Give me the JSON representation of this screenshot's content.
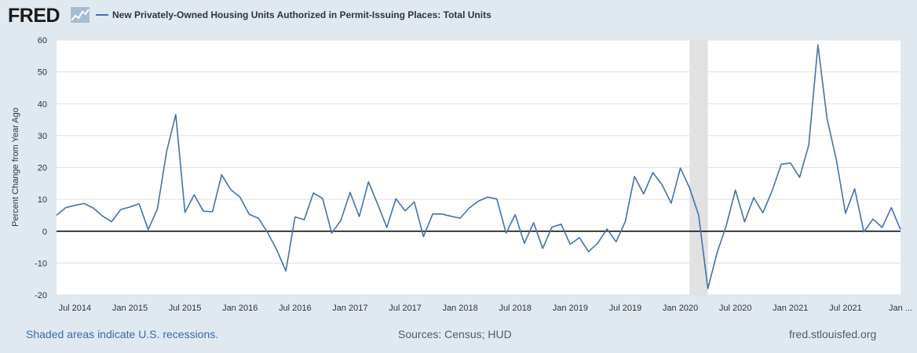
{
  "header": {
    "logo_text": "FRED",
    "logo_icon": "chart-graph-icon",
    "legend_label": "New Privately-Owned Housing Units Authorized in Permit-Issuing Places: Total Units"
  },
  "footer": {
    "recession_note": "Shaded areas indicate U.S. recessions.",
    "sources": "Sources: Census; HUD",
    "site": "fred.stlouisfed.org"
  },
  "colors": {
    "line": "#4572a7",
    "zero_line": "#000000",
    "recession": "#e1e1e1",
    "grid": "#e0e0e0",
    "plot_bg": "#ffffff",
    "page_bg": "#e1e9f0"
  },
  "chart_data": {
    "type": "line",
    "title": "New Privately-Owned Housing Units Authorized in Permit-Issuing Places: Total Units",
    "xlabel": "",
    "ylabel": "Percent Change from Year Ago",
    "ylim": [
      -20,
      60
    ],
    "yticks": [
      60,
      50,
      40,
      30,
      20,
      10,
      0,
      -10,
      -20
    ],
    "x_start": "2014-05",
    "x_end": "2022-01",
    "xticks": [
      {
        "date": "2014-07",
        "label": "Jul 2014"
      },
      {
        "date": "2015-01",
        "label": "Jan 2015"
      },
      {
        "date": "2015-07",
        "label": "Jul 2015"
      },
      {
        "date": "2016-01",
        "label": "Jan 2016"
      },
      {
        "date": "2016-07",
        "label": "Jul 2016"
      },
      {
        "date": "2017-01",
        "label": "Jan 2017"
      },
      {
        "date": "2017-07",
        "label": "Jul 2017"
      },
      {
        "date": "2018-01",
        "label": "Jan 2018"
      },
      {
        "date": "2018-07",
        "label": "Jul 2018"
      },
      {
        "date": "2019-01",
        "label": "Jan 2019"
      },
      {
        "date": "2019-07",
        "label": "Jul 2019"
      },
      {
        "date": "2020-01",
        "label": "Jan 2020"
      },
      {
        "date": "2020-07",
        "label": "Jul 2020"
      },
      {
        "date": "2021-01",
        "label": "Jan 2021"
      },
      {
        "date": "2021-07",
        "label": "Jul 2021"
      },
      {
        "date": "2022-01",
        "label": "Jan ..."
      }
    ],
    "recession": {
      "start": "2020-02",
      "end": "2020-04"
    },
    "grid": true,
    "series": [
      {
        "name": "New Privately-Owned Housing Units Authorized in Permit-Issuing Places: Total Units",
        "dates": [
          "2014-05",
          "2014-06",
          "2014-07",
          "2014-08",
          "2014-09",
          "2014-10",
          "2014-11",
          "2014-12",
          "2015-01",
          "2015-02",
          "2015-03",
          "2015-04",
          "2015-05",
          "2015-06",
          "2015-07",
          "2015-08",
          "2015-09",
          "2015-10",
          "2015-11",
          "2015-12",
          "2016-01",
          "2016-02",
          "2016-03",
          "2016-04",
          "2016-05",
          "2016-06",
          "2016-07",
          "2016-08",
          "2016-09",
          "2016-10",
          "2016-11",
          "2016-12",
          "2017-01",
          "2017-02",
          "2017-03",
          "2017-04",
          "2017-05",
          "2017-06",
          "2017-07",
          "2017-08",
          "2017-09",
          "2017-10",
          "2017-11",
          "2017-12",
          "2018-01",
          "2018-02",
          "2018-03",
          "2018-04",
          "2018-05",
          "2018-06",
          "2018-07",
          "2018-08",
          "2018-09",
          "2018-10",
          "2018-11",
          "2018-12",
          "2019-01",
          "2019-02",
          "2019-03",
          "2019-04",
          "2019-05",
          "2019-06",
          "2019-07",
          "2019-08",
          "2019-09",
          "2019-10",
          "2019-11",
          "2019-12",
          "2020-01",
          "2020-02",
          "2020-03",
          "2020-04",
          "2020-05",
          "2020-06",
          "2020-07",
          "2020-08",
          "2020-09",
          "2020-10",
          "2020-11",
          "2020-12",
          "2021-01",
          "2021-02",
          "2021-03",
          "2021-04",
          "2021-05",
          "2021-06",
          "2021-07",
          "2021-08",
          "2021-09",
          "2021-10",
          "2021-11",
          "2021-12",
          "2022-01"
        ],
        "values": [
          5.0,
          7.4,
          8.1,
          8.7,
          7.3,
          4.8,
          3.0,
          6.8,
          7.6,
          8.6,
          0.5,
          7.0,
          25.0,
          36.6,
          5.9,
          11.4,
          6.3,
          6.1,
          17.7,
          13.0,
          10.7,
          5.3,
          4.1,
          -0.4,
          -5.8,
          -12.5,
          4.5,
          3.6,
          12.0,
          10.3,
          -0.6,
          3.4,
          12.2,
          4.6,
          15.5,
          8.5,
          1.2,
          10.2,
          6.4,
          9.2,
          -1.7,
          5.4,
          5.4,
          4.7,
          4.1,
          7.3,
          9.5,
          10.7,
          10.1,
          -0.6,
          5.2,
          -3.8,
          2.7,
          -5.4,
          1.3,
          2.2,
          -4.1,
          -2.0,
          -6.4,
          -3.7,
          0.7,
          -3.3,
          3.1,
          17.2,
          11.7,
          18.4,
          14.6,
          8.8,
          19.8,
          13.6,
          5.0,
          -18.0,
          -6.8,
          1.7,
          12.9,
          3.0,
          10.5,
          5.8,
          12.6,
          21.0,
          21.4,
          16.9,
          27.1,
          58.5,
          35.2,
          22.5,
          5.6,
          13.3,
          -0.2,
          3.8,
          1.2,
          7.4,
          0.5
        ]
      }
    ]
  }
}
